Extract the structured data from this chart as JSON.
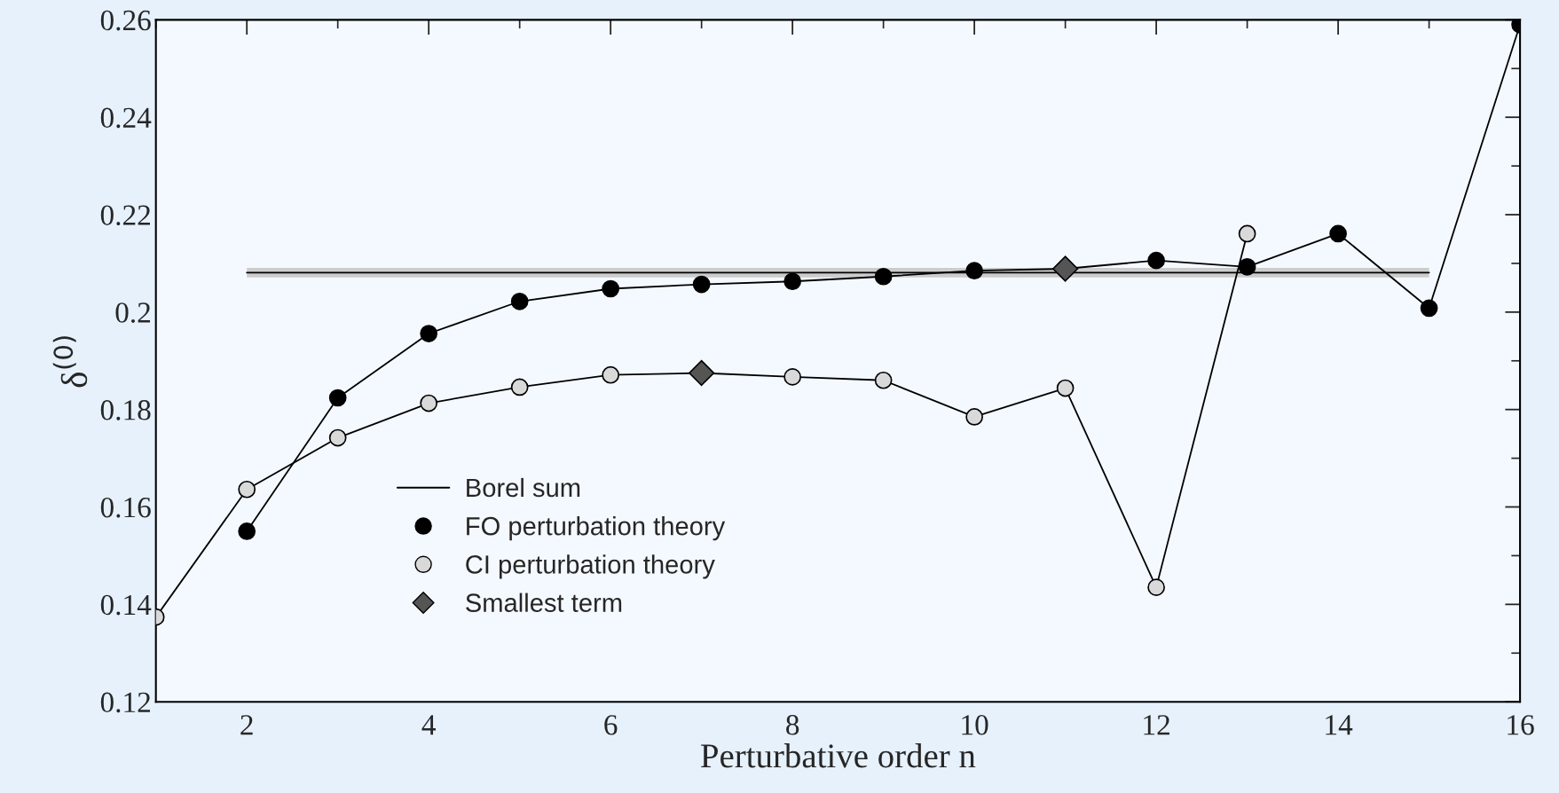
{
  "chart_data": {
    "type": "line",
    "xlabel": "Perturbative order n",
    "ylabel": "δ$^{(0)}$",
    "x": [
      1,
      2,
      3,
      4,
      5,
      6,
      7,
      8,
      9,
      10,
      11,
      12,
      13,
      14,
      15,
      16
    ],
    "series": [
      {
        "name": "Borel sum",
        "color": "#000000",
        "x": [
          2,
          15
        ],
        "values": [
          0.2081,
          0.2081
        ],
        "lower": [
          0.2071,
          0.2071
        ],
        "upper": [
          0.2091,
          0.2091
        ],
        "marker": "none"
      },
      {
        "name": "FO perturbation theory",
        "color": "#000000",
        "marker": "circle",
        "values": [
          null,
          0.155,
          0.1824,
          0.1956,
          0.2022,
          0.2048,
          0.2057,
          0.2063,
          0.2073,
          0.2085,
          0.2089,
          0.2106,
          0.2093,
          0.2161,
          0.2008,
          0.259
        ]
      },
      {
        "name": "CI perturbation theory",
        "color": "#d9d9d9",
        "marker": "circle",
        "values": [
          0.1374,
          0.1636,
          0.1742,
          0.1813,
          0.1846,
          0.1871,
          0.1875,
          0.1867,
          0.186,
          0.1785,
          0.1844,
          0.1435,
          0.2161,
          null,
          null,
          null
        ]
      },
      {
        "name": "Smallest term",
        "type": "scatter",
        "color": "#555555",
        "marker": "diamond",
        "x": [
          7,
          11
        ],
        "values": [
          0.1875,
          0.2089
        ]
      }
    ],
    "xlim": [
      1,
      16
    ],
    "xticks": [
      2,
      4,
      6,
      8,
      10,
      12,
      14,
      16
    ],
    "ylim": [
      0.12,
      0.26
    ],
    "yticks": [
      0.12,
      0.14,
      0.16,
      0.18,
      0.2,
      0.22,
      0.24,
      0.26
    ],
    "grid": false,
    "legend": "bottom left"
  }
}
